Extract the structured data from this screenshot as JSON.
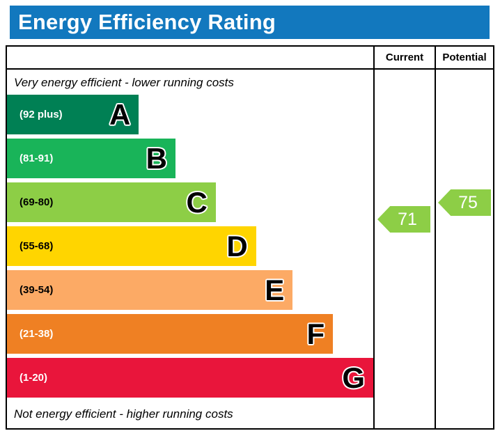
{
  "header": {
    "title": "Energy Efficiency Rating",
    "bg_color": "#1278be",
    "text_color": "#ffffff"
  },
  "table": {
    "current_label": "Current",
    "potential_label": "Potential"
  },
  "captions": {
    "top": "Very energy efficient - lower running costs",
    "bottom": "Not energy efficient - higher running costs"
  },
  "chart_data": {
    "type": "bar",
    "title": "Energy Efficiency Rating",
    "bands": [
      {
        "letter": "A",
        "range": "(92 plus)",
        "min": 92,
        "max": 100,
        "color": "#008054",
        "text_color": "#ffffff",
        "width_pct": 36
      },
      {
        "letter": "B",
        "range": "(81-91)",
        "min": 81,
        "max": 91,
        "color": "#19b459",
        "text_color": "#ffffff",
        "width_pct": 46
      },
      {
        "letter": "C",
        "range": "(69-80)",
        "min": 69,
        "max": 80,
        "color": "#8dce46",
        "text_color": "#000000",
        "width_pct": 57
      },
      {
        "letter": "D",
        "range": "(55-68)",
        "min": 55,
        "max": 68,
        "color": "#ffd500",
        "text_color": "#000000",
        "width_pct": 68
      },
      {
        "letter": "E",
        "range": "(39-54)",
        "min": 39,
        "max": 54,
        "color": "#fcaa65",
        "text_color": "#000000",
        "width_pct": 78
      },
      {
        "letter": "F",
        "range": "(21-38)",
        "min": 21,
        "max": 38,
        "color": "#ef8023",
        "text_color": "#ffffff",
        "width_pct": 89
      },
      {
        "letter": "G",
        "range": "(1-20)",
        "min": 1,
        "max": 20,
        "color": "#e9153b",
        "text_color": "#ffffff",
        "width_pct": 100
      }
    ],
    "current": {
      "value": 71,
      "color": "#8dce46"
    },
    "potential": {
      "value": 75,
      "color": "#8dce46"
    }
  }
}
